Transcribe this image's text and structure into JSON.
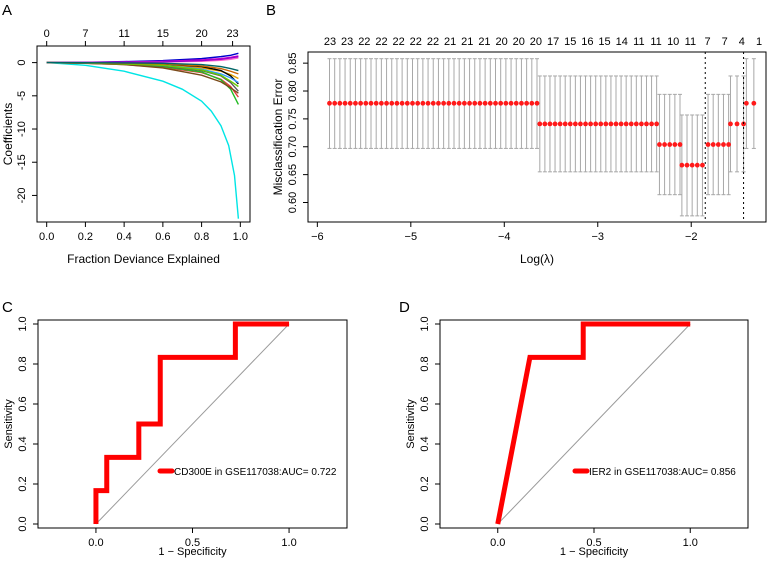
{
  "panels": [
    "A",
    "B",
    "C",
    "D"
  ],
  "chart_data": [
    {
      "panel": "A",
      "type": "line",
      "xlabel": "Fraction Deviance Explained",
      "ylabel": "Coefficients",
      "xlim": [
        -0.05,
        1.05
      ],
      "ylim": [
        -24,
        2.5
      ],
      "xticks": [
        "0.0",
        "0.2",
        "0.4",
        "0.6",
        "0.8",
        "1.0"
      ],
      "xtick_values": [
        0,
        0.2,
        0.4,
        0.6,
        0.8,
        1.0
      ],
      "yticks": [
        "0",
        "-5",
        "-10",
        "-15",
        "-20"
      ],
      "ytick_values": [
        0,
        -5,
        -10,
        -15,
        -20
      ],
      "top_ticks": [
        "0",
        "7",
        "11",
        "15",
        "20",
        "23"
      ],
      "top_tick_values": [
        0,
        0.2,
        0.4,
        0.6,
        0.8,
        0.96
      ],
      "series": [
        {
          "color": "#00e5e5",
          "x": [
            0,
            0.2,
            0.4,
            0.6,
            0.7,
            0.8,
            0.85,
            0.9,
            0.94,
            0.97,
            0.99
          ],
          "y": [
            0,
            -0.4,
            -1.3,
            -2.8,
            -4.0,
            -5.8,
            -7.3,
            -9.5,
            -12.5,
            -17.0,
            -23.5
          ]
        },
        {
          "color": "#e03c3c",
          "x": [
            0,
            0.2,
            0.4,
            0.6,
            0.8,
            0.9,
            0.95,
            0.99
          ],
          "y": [
            0,
            -0.1,
            -0.3,
            -0.7,
            -1.5,
            -2.5,
            -3.6,
            -5.2
          ]
        },
        {
          "color": "#22bb22",
          "x": [
            0,
            0.2,
            0.4,
            0.6,
            0.8,
            0.9,
            0.95,
            0.99
          ],
          "y": [
            0,
            -0.1,
            -0.2,
            -0.6,
            -1.4,
            -2.6,
            -4.0,
            -6.3
          ]
        },
        {
          "color": "#5a5a5a",
          "x": [
            0,
            0.2,
            0.4,
            0.6,
            0.8,
            0.9,
            0.95,
            0.99
          ],
          "y": [
            0,
            -0.05,
            -0.2,
            -0.5,
            -1.2,
            -2.0,
            -3.0,
            -4.3
          ]
        },
        {
          "color": "#0000cc",
          "x": [
            0,
            0.2,
            0.4,
            0.6,
            0.8,
            0.9,
            0.95,
            0.99
          ],
          "y": [
            0,
            0.05,
            0.15,
            0.3,
            0.6,
            0.9,
            1.1,
            1.4
          ]
        },
        {
          "color": "#d000d0",
          "x": [
            0,
            0.2,
            0.4,
            0.6,
            0.8,
            0.9,
            0.95,
            0.99
          ],
          "y": [
            0,
            0.02,
            0.1,
            0.2,
            0.4,
            0.6,
            0.8,
            1.0
          ]
        },
        {
          "color": "#e0a000",
          "x": [
            0,
            0.2,
            0.4,
            0.6,
            0.8,
            0.9,
            0.95,
            0.99
          ],
          "y": [
            0,
            -0.02,
            -0.1,
            -0.3,
            -0.8,
            -1.3,
            -1.8,
            -2.4
          ]
        },
        {
          "color": "#000000",
          "x": [
            0,
            0.2,
            0.4,
            0.6,
            0.8,
            0.9,
            0.95,
            0.99
          ],
          "y": [
            0,
            -0.02,
            -0.05,
            -0.2,
            -0.6,
            -1.2,
            -2.0,
            -3.2
          ]
        },
        {
          "color": "#7a4a1a",
          "x": [
            0,
            0.2,
            0.4,
            0.6,
            0.8,
            0.9,
            0.95,
            0.99
          ],
          "y": [
            0,
            -0.1,
            -0.3,
            -0.8,
            -1.9,
            -2.9,
            -3.8,
            -4.6
          ]
        },
        {
          "color": "#ff66cc",
          "x": [
            0,
            0.2,
            0.4,
            0.6,
            0.8,
            0.9,
            0.95,
            0.99
          ],
          "y": [
            0,
            0.01,
            0.05,
            0.1,
            0.2,
            0.35,
            0.5,
            0.7
          ]
        },
        {
          "color": "#3399ff",
          "x": [
            0,
            0.2,
            0.4,
            0.6,
            0.8,
            0.9,
            0.95,
            0.99
          ],
          "y": [
            0,
            -0.05,
            -0.15,
            -0.4,
            -1.0,
            -1.7,
            -2.3,
            -3.0
          ]
        },
        {
          "color": "#66cc00",
          "x": [
            0,
            0.2,
            0.4,
            0.6,
            0.8,
            0.9,
            0.95,
            0.99
          ],
          "y": [
            0,
            -0.05,
            -0.2,
            -0.4,
            -1.1,
            -1.9,
            -2.8,
            -3.6
          ]
        },
        {
          "color": "#9900cc",
          "x": [
            0,
            0.2,
            0.4,
            0.6,
            0.8,
            0.9,
            0.95,
            0.99
          ],
          "y": [
            0,
            0.02,
            0.05,
            0.1,
            0.3,
            0.5,
            0.7,
            0.9
          ]
        },
        {
          "color": "#cc6600",
          "x": [
            0,
            0.2,
            0.4,
            0.6,
            0.8,
            0.9,
            0.95,
            0.99
          ],
          "y": [
            0,
            -0.03,
            -0.1,
            -0.2,
            -0.5,
            -0.9,
            -1.3,
            -1.7
          ]
        },
        {
          "color": "#006666",
          "x": [
            0,
            0.2,
            0.4,
            0.6,
            0.8,
            0.9,
            0.95,
            0.99
          ],
          "y": [
            0,
            -0.01,
            -0.05,
            -0.1,
            -0.3,
            -0.6,
            -0.9,
            -1.2
          ]
        }
      ]
    },
    {
      "panel": "B",
      "type": "scatter",
      "xlabel": "Log(λ)",
      "ylabel": "Misclassification Error",
      "xlim": [
        -6.1,
        -1.2
      ],
      "ylim": [
        0.565,
        0.87
      ],
      "xticks": [
        "−6",
        "−5",
        "−4",
        "−3",
        "−2"
      ],
      "xtick_values": [
        -6,
        -5,
        -4,
        -3,
        -2
      ],
      "yticks": [
        "0.60",
        "0.65",
        "0.70",
        "0.75",
        "0.80",
        "0.85"
      ],
      "ytick_values": [
        0.6,
        0.65,
        0.7,
        0.75,
        0.8,
        0.85
      ],
      "top_ticks": [
        "23",
        "23",
        "22",
        "22",
        "22",
        "22",
        "22",
        "21",
        "21",
        "21",
        "20",
        "20",
        "20",
        "17",
        "15",
        "16",
        "15",
        "14",
        "11",
        "11",
        "10",
        "11",
        "7",
        "7",
        "4",
        "1"
      ],
      "vlines": [
        -1.85,
        -1.44
      ],
      "groups": [
        {
          "x_start": -5.87,
          "x_end": -3.65,
          "count": 41,
          "mean": 0.778,
          "lower": 0.697,
          "upper": 0.858
        },
        {
          "x_start": -3.62,
          "x_end": -2.37,
          "count": 24,
          "mean": 0.741,
          "lower": 0.655,
          "upper": 0.827
        },
        {
          "x_start": -2.34,
          "x_end": -2.12,
          "count": 5,
          "mean": 0.704,
          "lower": 0.614,
          "upper": 0.794
        },
        {
          "x_start": -2.1,
          "x_end": -1.88,
          "count": 5,
          "mean": 0.667,
          "lower": 0.576,
          "upper": 0.757
        },
        {
          "x_start": -1.82,
          "x_end": -1.6,
          "count": 5,
          "mean": 0.704,
          "lower": 0.614,
          "upper": 0.794
        },
        {
          "x_start": -1.58,
          "x_end": -1.44,
          "count": 3,
          "mean": 0.741,
          "lower": 0.655,
          "upper": 0.827
        },
        {
          "x_start": -1.41,
          "x_end": -1.33,
          "count": 2,
          "mean": 0.778,
          "lower": 0.697,
          "upper": 0.858
        }
      ]
    },
    {
      "panel": "C",
      "type": "line",
      "xlabel": "1 − Specificity",
      "ylabel": "Sensitivity",
      "xlim": [
        -0.3,
        1.3
      ],
      "ylim": [
        -0.02,
        1.02
      ],
      "xticks": [
        "0.0",
        "0.5",
        "1.0"
      ],
      "xtick_values": [
        0,
        0.5,
        1.0
      ],
      "yticks": [
        "0.0",
        "0.2",
        "0.4",
        "0.6",
        "0.8",
        "1.0"
      ],
      "ytick_values": [
        0,
        0.2,
        0.4,
        0.6,
        0.8,
        1.0
      ],
      "legend": "CD300E  in GSE117038:AUC= 0.722",
      "roc": {
        "x": [
          0,
          0,
          0.056,
          0.056,
          0.056,
          0.222,
          0.222,
          0.333,
          0.333,
          0.722,
          0.722,
          1.0
        ],
        "y": [
          0,
          0.167,
          0.167,
          0.333,
          0.333,
          0.333,
          0.5,
          0.5,
          0.833,
          0.833,
          1.0,
          1.0
        ]
      }
    },
    {
      "panel": "D",
      "type": "line",
      "xlabel": "1 − Specificity",
      "ylabel": "Sensitivity",
      "xlim": [
        -0.3,
        1.3
      ],
      "ylim": [
        -0.02,
        1.02
      ],
      "xticks": [
        "0.0",
        "0.5",
        "1.0"
      ],
      "xtick_values": [
        0,
        0.5,
        1.0
      ],
      "yticks": [
        "0.0",
        "0.2",
        "0.4",
        "0.6",
        "0.8",
        "1.0"
      ],
      "ytick_values": [
        0,
        0.2,
        0.4,
        0.6,
        0.8,
        1.0
      ],
      "legend": "IER2  in GSE117038:AUC= 0.856",
      "roc": {
        "x": [
          0,
          0.167,
          0.444,
          0.444,
          1.0
        ],
        "y": [
          0,
          0.833,
          0.833,
          1.0,
          1.0
        ]
      }
    }
  ]
}
